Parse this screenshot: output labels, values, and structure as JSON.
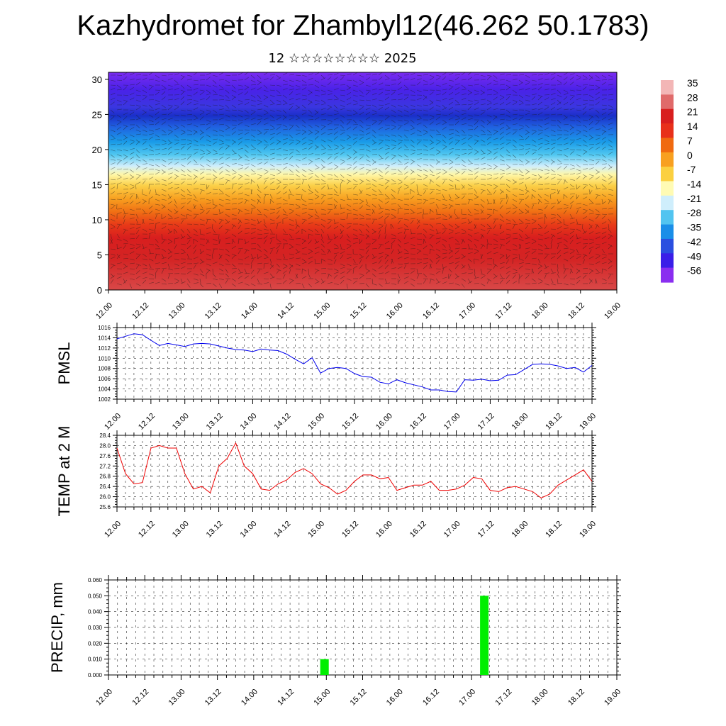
{
  "title": "Kazhydromet for Zhambyl12(46.262 50.1783)",
  "subtitle": "12 ☆☆☆☆☆☆☆☆ 2025",
  "chart_data": [
    {
      "type": "heatmap",
      "title": "",
      "xlabel": "",
      "ylabel": "",
      "x_tick_labels": [
        "12.00",
        "12.12",
        "13.00",
        "13.12",
        "14.00",
        "14.12",
        "15.00",
        "15.12",
        "16.00",
        "16.12",
        "17.00",
        "17.12",
        "18.00",
        "18.12",
        "19.00"
      ],
      "y_tick_labels": [
        "0",
        "5",
        "10",
        "15",
        "20",
        "25",
        "30"
      ],
      "ylim": [
        0,
        31
      ],
      "colorbar_labels": [
        "35",
        "28",
        "21",
        "14",
        "7",
        "0",
        "-7",
        "-14",
        "-21",
        "-28",
        "-35",
        "-42",
        "-49",
        "-56"
      ],
      "colorbar_colors": [
        "#f3b6b6",
        "#e06a6a",
        "#d81e1e",
        "#e8301a",
        "#f06a10",
        "#f8a020",
        "#fbd040",
        "#fffbb4",
        "#cfeefc",
        "#52c4f0",
        "#1a8ee8",
        "#2a4fe0",
        "#3a1ee8",
        "#8a2ef0"
      ],
      "overlay": "wind barbs"
    },
    {
      "type": "line",
      "ylabel": "PMSL",
      "x_tick_labels": [
        "12.00",
        "12.12",
        "13.00",
        "13.12",
        "14.00",
        "14.12",
        "15.00",
        "15.12",
        "16.00",
        "16.12",
        "17.00",
        "17.12",
        "18.00",
        "18.12",
        "19.00"
      ],
      "y_tick_labels": [
        "1002",
        "1004",
        "1006",
        "1008",
        "1010",
        "1012",
        "1014",
        "1016"
      ],
      "ylim": [
        1002,
        1016
      ],
      "series": [
        {
          "color": "#0000ee",
          "values": [
            1013.8,
            1014.3,
            1014.8,
            1014.6,
            1013.5,
            1012.5,
            1012.9,
            1012.6,
            1012.3,
            1012.8,
            1012.9,
            1012.8,
            1012.4,
            1012.0,
            1011.7,
            1011.6,
            1011.3,
            1011.8,
            1011.6,
            1011.5,
            1010.8,
            1009.8,
            1008.9,
            1010.1,
            1007.1,
            1008.0,
            1008.2,
            1008.0,
            1007.0,
            1006.4,
            1006.3,
            1005.3,
            1005.0,
            1005.8,
            1005.2,
            1004.8,
            1004.4,
            1003.8,
            1003.8,
            1003.5,
            1003.4,
            1005.8,
            1005.7,
            1005.9,
            1005.6,
            1005.7,
            1006.7,
            1006.8,
            1007.8,
            1008.8,
            1008.9,
            1008.8,
            1008.5,
            1008.0,
            1008.2,
            1007.3,
            1008.6
          ]
        }
      ]
    },
    {
      "type": "line",
      "ylabel": "TEMP at 2 M",
      "x_tick_labels": [
        "12.00",
        "12.12",
        "13.00",
        "13.12",
        "14.00",
        "14.12",
        "15.00",
        "15.12",
        "16.00",
        "16.12",
        "17.00",
        "17.12",
        "18.00",
        "18.12",
        "19.00"
      ],
      "y_tick_labels": [
        "25.6",
        "26.0",
        "26.4",
        "26.8",
        "27.2",
        "27.6",
        "28.0",
        "28.4"
      ],
      "ylim": [
        25.6,
        28.4
      ],
      "series": [
        {
          "color": "#ee0000",
          "values": [
            27.9,
            26.9,
            26.5,
            26.55,
            27.9,
            28.0,
            27.9,
            27.9,
            26.9,
            26.3,
            26.4,
            26.15,
            27.2,
            27.5,
            28.1,
            27.2,
            26.9,
            26.3,
            26.25,
            26.5,
            26.65,
            26.95,
            27.1,
            26.9,
            26.5,
            26.35,
            26.1,
            26.25,
            26.6,
            26.85,
            26.85,
            26.7,
            26.75,
            26.25,
            26.35,
            26.45,
            26.45,
            26.6,
            26.25,
            26.25,
            26.3,
            26.45,
            26.75,
            26.7,
            26.25,
            26.2,
            26.35,
            26.4,
            26.3,
            26.2,
            25.95,
            26.1,
            26.45,
            26.65,
            26.85,
            27.05,
            26.6
          ]
        }
      ]
    },
    {
      "type": "bar",
      "ylabel": "PRECIP, mm",
      "x_tick_labels": [
        "12.00",
        "12.12",
        "13.00",
        "13.12",
        "14.00",
        "14.12",
        "15.00",
        "15.12",
        "16.00",
        "16.12",
        "17.00",
        "17.12",
        "18.00",
        "18.12",
        "19.00"
      ],
      "y_tick_labels": [
        "0.000",
        "0.010",
        "0.020",
        "0.030",
        "0.040",
        "0.050",
        "0.060"
      ],
      "ylim": [
        0,
        0.06
      ],
      "bar_color": "#00ee00",
      "bars": [
        {
          "x_index": 5.95,
          "value": 0.01
        },
        {
          "x_index": 10.35,
          "value": 0.05
        }
      ]
    }
  ]
}
